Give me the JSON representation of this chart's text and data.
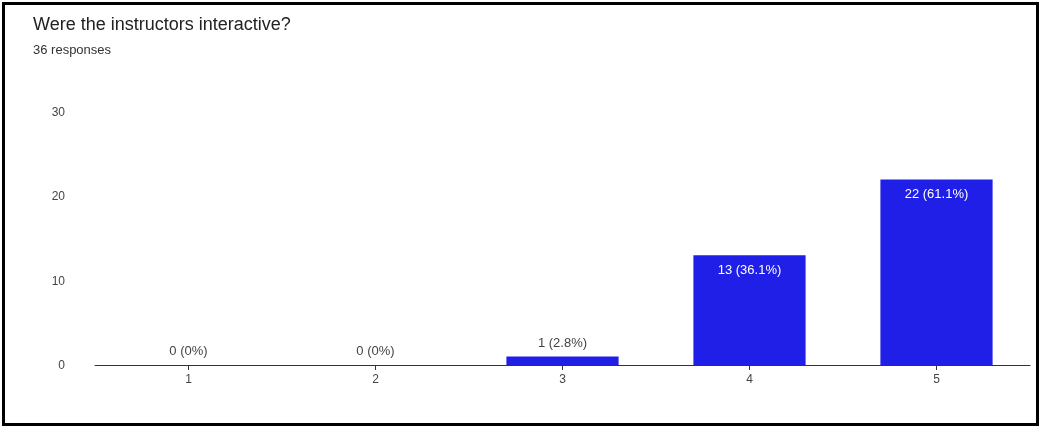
{
  "chart_data": {
    "type": "bar",
    "title": "Were the instructors interactive?",
    "subtitle": "36 responses",
    "categories": [
      "1",
      "2",
      "3",
      "4",
      "5"
    ],
    "values": [
      0,
      0,
      1,
      13,
      22
    ],
    "value_labels": [
      "0 (0%)",
      "0 (0%)",
      "1 (2.8%)",
      "13 (36.1%)",
      "22 (61.1%)"
    ],
    "color": "#1f1fe8",
    "ylim": [
      0,
      30
    ],
    "yticks": [
      0,
      10,
      20,
      30
    ],
    "grid": false
  }
}
